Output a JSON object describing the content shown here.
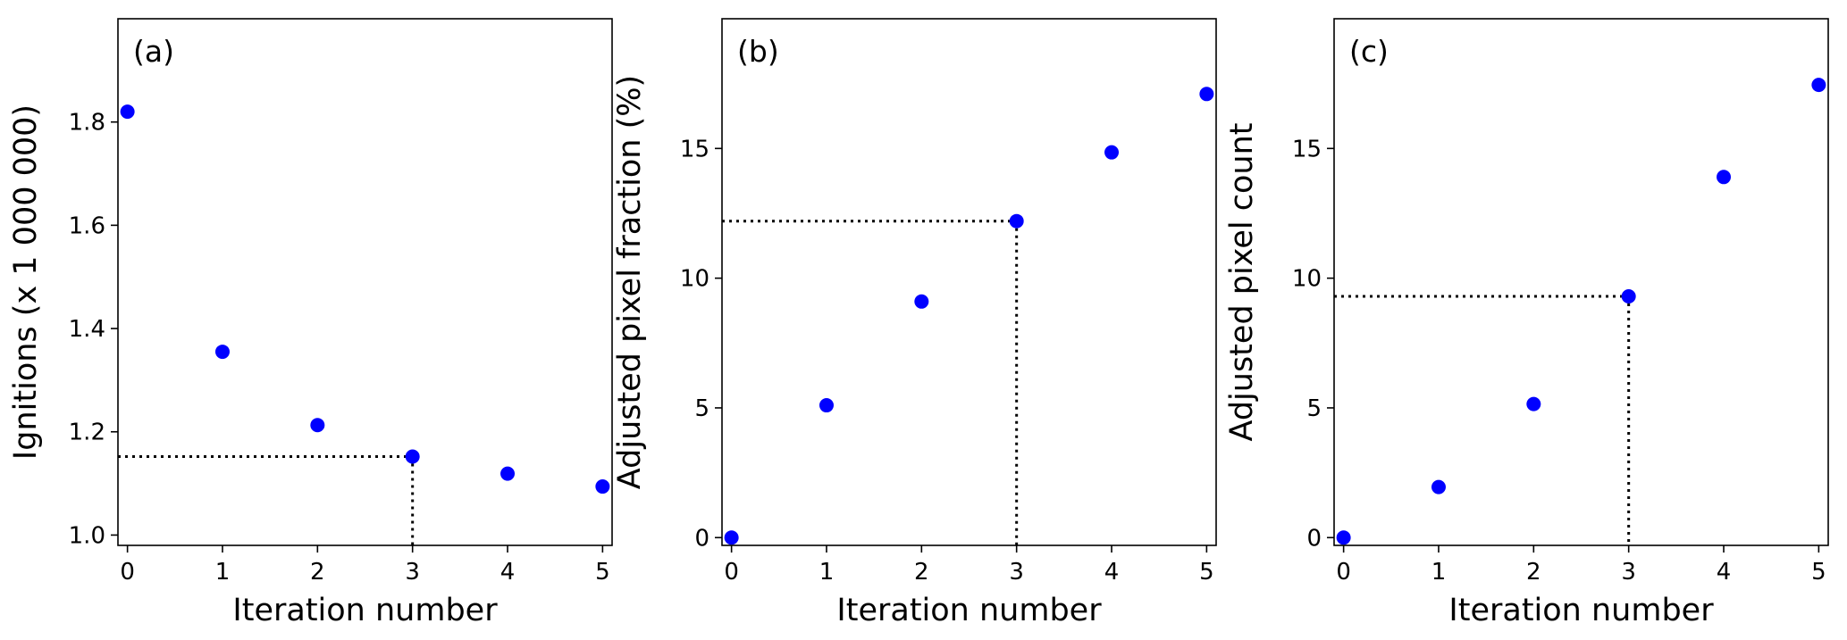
{
  "chart_data": [
    {
      "type": "scatter",
      "panel_label": "(a)",
      "xlabel": "Iteration number",
      "ylabel": "Ignitions (x 1 000 000)",
      "x": [
        0,
        1,
        2,
        3,
        4,
        5
      ],
      "y": [
        1.82,
        1.355,
        1.213,
        1.152,
        1.119,
        1.094
      ],
      "xlim": [
        -0.1,
        5.1
      ],
      "ylim": [
        0.98,
        2.0
      ],
      "xticks": [
        0,
        1,
        2,
        3,
        4,
        5
      ],
      "yticks": [
        1.0,
        1.2,
        1.4,
        1.6,
        1.8
      ],
      "ytick_labels": [
        "1.0",
        "1.2",
        "1.4",
        "1.6",
        "1.8"
      ],
      "reference": {
        "x": 3,
        "y": 1.152,
        "style": "dotted"
      },
      "marker_color": "#0000ff",
      "grid": false
    },
    {
      "type": "scatter",
      "panel_label": "(b)",
      "xlabel": "Iteration number",
      "ylabel": "Adjusted pixel fraction (%)",
      "x": [
        0,
        1,
        2,
        3,
        4,
        5
      ],
      "y": [
        0.0,
        5.1,
        9.1,
        12.2,
        14.85,
        17.1
      ],
      "xlim": [
        -0.1,
        5.1
      ],
      "ylim": [
        -0.3,
        20.0
      ],
      "xticks": [
        0,
        1,
        2,
        3,
        4,
        5
      ],
      "yticks": [
        0,
        5,
        10,
        15
      ],
      "ytick_labels": [
        "0",
        "5",
        "10",
        "15"
      ],
      "reference": {
        "x": 3,
        "y": 12.2,
        "style": "dotted"
      },
      "marker_color": "#0000ff",
      "grid": false
    },
    {
      "type": "scatter",
      "panel_label": "(c)",
      "xlabel": "Iteration number",
      "ylabel": "Adjusted pixel count",
      "x": [
        0,
        1,
        2,
        3,
        4,
        5
      ],
      "y": [
        0.0,
        1.95,
        5.15,
        9.3,
        13.9,
        17.45
      ],
      "xlim": [
        -0.1,
        5.1
      ],
      "ylim": [
        -0.3,
        20.0
      ],
      "xticks": [
        0,
        1,
        2,
        3,
        4,
        5
      ],
      "yticks": [
        0,
        5,
        10,
        15
      ],
      "ytick_labels": [
        "0",
        "5",
        "10",
        "15"
      ],
      "reference": {
        "x": 3,
        "y": 9.3,
        "style": "dotted"
      },
      "marker_color": "#0000ff",
      "grid": false
    }
  ]
}
